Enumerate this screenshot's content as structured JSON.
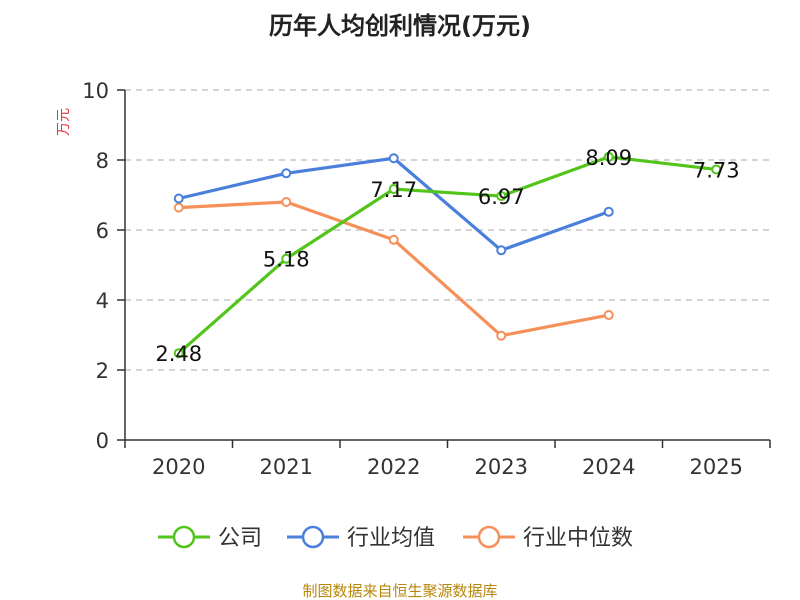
{
  "chart_data": {
    "type": "line",
    "title": "历年人均创利情况(万元)",
    "ylabel": "万元",
    "xlabel": "",
    "categories": [
      "2020",
      "2021",
      "2022",
      "2023",
      "2024",
      "2025"
    ],
    "ylim": [
      0,
      10
    ],
    "yticks": [
      "0",
      "2",
      "4",
      "6",
      "8",
      "10"
    ],
    "grid": true,
    "legend_position": "bottom",
    "series": [
      {
        "name": "公司",
        "color": "#52c41a",
        "values": [
          2.48,
          5.18,
          7.17,
          6.97,
          8.09,
          7.73
        ],
        "labels": [
          "2.48",
          "5.18",
          "7.17",
          "6.97",
          "8.09",
          "7.73"
        ]
      },
      {
        "name": "行业均值",
        "color": "#4a7fdb",
        "values": [
          6.9,
          7.62,
          8.05,
          5.42,
          6.52,
          null
        ]
      },
      {
        "name": "行业中位数",
        "color": "#f5905a",
        "values": [
          6.64,
          6.8,
          5.72,
          2.98,
          3.57,
          null
        ]
      }
    ]
  },
  "footer": {
    "source": "制图数据来自恒生聚源数据库"
  },
  "colors": {
    "ylabel": "#e0393e",
    "footer": "#b8860b",
    "axis": "#333333",
    "grid": "#bbbbbb"
  }
}
